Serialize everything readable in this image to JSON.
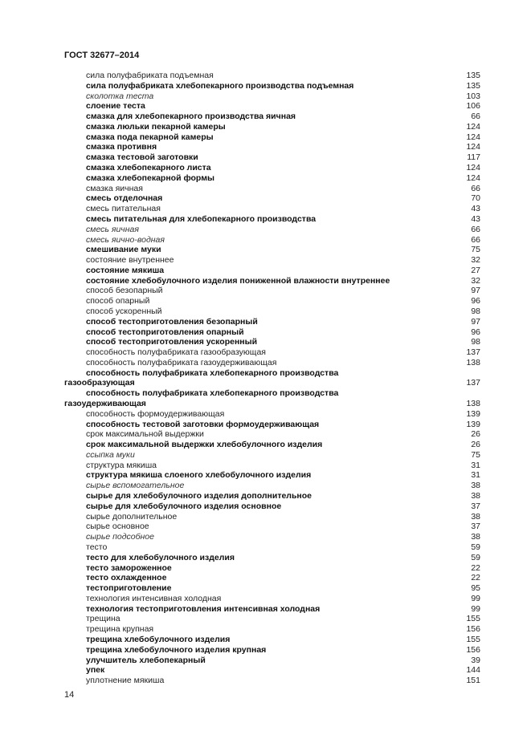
{
  "header": {
    "title": "ГОСТ 32677–2014"
  },
  "entries": [
    {
      "text": "сила полуфабриката подъемная",
      "page": "135",
      "style": "r"
    },
    {
      "text": "сила полуфабриката хлебопекарного производства подъемная",
      "page": "135",
      "style": "b"
    },
    {
      "text": "сколотка теста",
      "page": "103",
      "style": "i"
    },
    {
      "text": "слоение теста",
      "page": "106",
      "style": "b"
    },
    {
      "text": "смазка для хлебопекарного производства яичная",
      "page": "66",
      "style": "b"
    },
    {
      "text": "смазка люльки пекарной камеры",
      "page": "124",
      "style": "b"
    },
    {
      "text": "смазка пода пекарной камеры",
      "page": "124",
      "style": "b"
    },
    {
      "text": "смазка противня",
      "page": "124",
      "style": "b"
    },
    {
      "text": "смазка тестовой заготовки",
      "page": "117",
      "style": "b"
    },
    {
      "text": "смазка хлебопекарного листа",
      "page": "124",
      "style": "b"
    },
    {
      "text": "смазка хлебопекарной формы",
      "page": "124",
      "style": "b"
    },
    {
      "text": "смазка яичная",
      "page": "66",
      "style": "r"
    },
    {
      "text": "смесь отделочная",
      "page": "70",
      "style": "b"
    },
    {
      "text": "смесь питательная",
      "page": "43",
      "style": "r"
    },
    {
      "text": "смесь питательная для хлебопекарного производства",
      "page": "43",
      "style": "b"
    },
    {
      "text": "смесь яичная",
      "page": "66",
      "style": "i"
    },
    {
      "text": "смесь яично-водная",
      "page": "66",
      "style": "i"
    },
    {
      "text": "смешивание муки",
      "page": "75",
      "style": "b"
    },
    {
      "text": "состояние внутреннее",
      "page": "32",
      "style": "r"
    },
    {
      "text": "состояние мякиша",
      "page": "27",
      "style": "b"
    },
    {
      "text": "состояние хлебобулочного изделия пониженной влажности внутреннее",
      "page": "32",
      "style": "b"
    },
    {
      "text": "способ безопарный",
      "page": "97",
      "style": "r"
    },
    {
      "text": "способ опарный",
      "page": "96",
      "style": "r"
    },
    {
      "text": "способ ускоренный",
      "page": "98",
      "style": "r"
    },
    {
      "text": "способ тестоприготовления безопарный",
      "page": "97",
      "style": "b"
    },
    {
      "text": "способ тестоприготовления опарный",
      "page": "96",
      "style": "b"
    },
    {
      "text": "способ тестоприготовления ускоренный",
      "page": "98",
      "style": "b"
    },
    {
      "text": "способность полуфабриката газообразующая",
      "page": "137",
      "style": "r"
    },
    {
      "text": "способность полуфабриката газоудерживающая",
      "page": "138",
      "style": "r"
    },
    {
      "text": "способность полуфабриката хлебопекарного производства",
      "cont": "газообразующая",
      "page": "137",
      "style": "b"
    },
    {
      "text": "способность полуфабриката хлебопекарного  производства",
      "cont": "газоудерживающая",
      "page": "138",
      "style": "b"
    },
    {
      "text": "способность формоудерживающая",
      "page": "139",
      "style": "r"
    },
    {
      "text": "способность тестовой заготовки формоудерживающая",
      "page": "139",
      "style": "b"
    },
    {
      "text": "срок максимальной выдержки",
      "page": "26",
      "style": "r"
    },
    {
      "text": "срок максимальной выдержки хлебобулочного изделия",
      "page": "26",
      "style": "b"
    },
    {
      "text": "ссыпка муки",
      "page": "75",
      "style": "i"
    },
    {
      "text": "структура мякиша",
      "page": "31",
      "style": "r"
    },
    {
      "text": "структура мякиша слоеного хлебобулочного изделия",
      "page": "31",
      "style": "b"
    },
    {
      "text": "сырье вспомогательное",
      "page": "38",
      "style": "i"
    },
    {
      "text": "сырье для хлебобулочного изделия дополнительное",
      "page": "38",
      "style": "b"
    },
    {
      "text": "сырье для хлебобулочного изделия основное",
      "page": "37",
      "style": "b"
    },
    {
      "text": "сырье дополнительное",
      "page": "38",
      "style": "r"
    },
    {
      "text": "сырье основное",
      "page": "37",
      "style": "r"
    },
    {
      "text": "сырье подсобное",
      "page": "38",
      "style": "i"
    },
    {
      "text": "тесто",
      "page": "59",
      "style": "r"
    },
    {
      "text": "тесто для хлебобулочного изделия",
      "page": "59",
      "style": "b"
    },
    {
      "text": "тесто замороженное",
      "page": "22",
      "style": "b"
    },
    {
      "text": "тесто охлажденное",
      "page": "22",
      "style": "b"
    },
    {
      "text": "тестоприготовление",
      "page": "95",
      "style": "b"
    },
    {
      "text": "технология интенсивная холодная",
      "page": "99",
      "style": "r"
    },
    {
      "text": "технология тестоприготовления интенсивная холодная",
      "page": "99",
      "style": "b"
    },
    {
      "text": "трещина",
      "page": "155",
      "style": "r"
    },
    {
      "text": "трещина крупная",
      "page": "156",
      "style": "r"
    },
    {
      "text": "трещина хлебобулочного изделия",
      "page": "155",
      "style": "b"
    },
    {
      "text": "трещина хлебобулочного изделия крупная",
      "page": "156",
      "style": "b"
    },
    {
      "text": "улучшитель хлебопекарный",
      "page": "39",
      "style": "b"
    },
    {
      "text": "упек",
      "page": "144",
      "style": "b"
    },
    {
      "text": "уплотнение мякиша",
      "page": "151",
      "style": "r"
    }
  ],
  "footer": {
    "page_number": "14"
  }
}
